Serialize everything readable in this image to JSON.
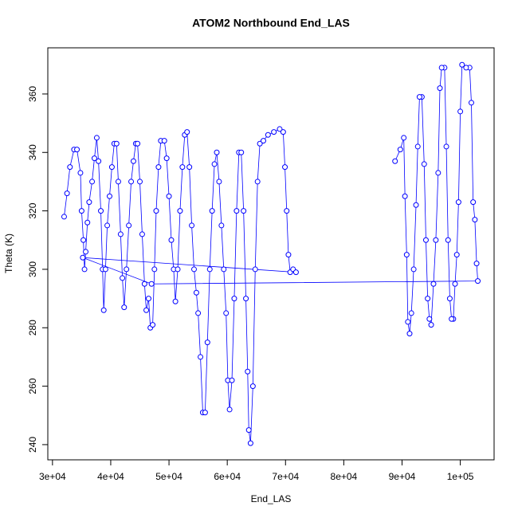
{
  "chart_data": {
    "type": "line",
    "title": "ATOM2 Northbound End_LAS",
    "x_label": "End_LAS",
    "y_label": "Theta (K)",
    "color": "#0000ff",
    "marker": "circle",
    "xlim": [
      29200,
      105800
    ],
    "ylim": [
      234.8,
      375.8
    ],
    "xticks": [
      {
        "value": 30000,
        "label": "3e+04"
      },
      {
        "value": 40000,
        "label": "4e+04"
      },
      {
        "value": 50000,
        "label": "5e+04"
      },
      {
        "value": 60000,
        "label": "6e+04"
      },
      {
        "value": 70000,
        "label": "7e+04"
      },
      {
        "value": 80000,
        "label": "8e+04"
      },
      {
        "value": 90000,
        "label": "9e+04"
      },
      {
        "value": 100000,
        "label": "1e+05"
      }
    ],
    "yticks": [
      240,
      260,
      280,
      300,
      320,
      340,
      360
    ],
    "x": [
      32000,
      32500,
      33000,
      33700,
      34200,
      34800,
      35000,
      35300,
      35500,
      35700,
      36000,
      36300,
      36800,
      37200,
      37600,
      37900,
      38300,
      38600,
      38800,
      39100,
      39400,
      39800,
      40200,
      40600,
      41000,
      41300,
      41700,
      42000,
      42300,
      42700,
      43100,
      43500,
      43900,
      44300,
      44600,
      45000,
      45400,
      45800,
      46100,
      46500,
      46800,
      47200,
      47500,
      47800,
      48200,
      48600,
      49200,
      49600,
      50000,
      50400,
      50800,
      51100,
      51500,
      51900,
      52300,
      52700,
      53100,
      53500,
      53900,
      54300,
      54700,
      55000,
      55400,
      55800,
      56200,
      56600,
      57000,
      57400,
      57800,
      58200,
      58600,
      59000,
      59400,
      59800,
      60100,
      60400,
      60800,
      61200,
      61600,
      62000,
      62400,
      62800,
      63200,
      63500,
      63700,
      64000,
      64400,
      64800,
      65200,
      65600,
      66200,
      67000,
      68000,
      69000,
      69600,
      69900,
      70200,
      70500,
      70800,
      71300,
      71800,
      35200,
      47000,
      103000,
      102800,
      102500,
      102200,
      101900,
      101600,
      101000,
      100300,
      100000,
      99700,
      99400,
      99100,
      98800,
      98500,
      98200,
      97900,
      97600,
      97300,
      96800,
      96500,
      96200,
      95800,
      95400,
      95000,
      94700,
      94400,
      94100,
      93800,
      93400,
      93000,
      92700,
      92400,
      92000,
      91600,
      91300,
      91000,
      90800,
      90500,
      90300,
      89700,
      88800
    ],
    "values": [
      318,
      326,
      335,
      341,
      341,
      333,
      320,
      310,
      300,
      306,
      316,
      323,
      330,
      338,
      345,
      337,
      320,
      300,
      286,
      300,
      315,
      325,
      335,
      343,
      343,
      330,
      312,
      297,
      287,
      300,
      315,
      330,
      337,
      343,
      343,
      330,
      312,
      295,
      286,
      290,
      280,
      281,
      300,
      320,
      335,
      344,
      344,
      338,
      325,
      310,
      300,
      289,
      300,
      320,
      335,
      346,
      347,
      335,
      315,
      300,
      292,
      285,
      270,
      251,
      251,
      275,
      300,
      320,
      336,
      340,
      330,
      315,
      300,
      285,
      262,
      252,
      262,
      290,
      320,
      340,
      340,
      320,
      290,
      265,
      245,
      240.5,
      260,
      300,
      330,
      343,
      344,
      346,
      347,
      348,
      347,
      335,
      320,
      305,
      299,
      300,
      299,
      304,
      295,
      296,
      302,
      317,
      323,
      357,
      369,
      369,
      370,
      354,
      323,
      305,
      295,
      283,
      283,
      290,
      310,
      342,
      369,
      369,
      362,
      333,
      310,
      295,
      281,
      283,
      290,
      310,
      336,
      359,
      359,
      342,
      322,
      300,
      285,
      278,
      282,
      305,
      325,
      345,
      341,
      337
    ]
  }
}
